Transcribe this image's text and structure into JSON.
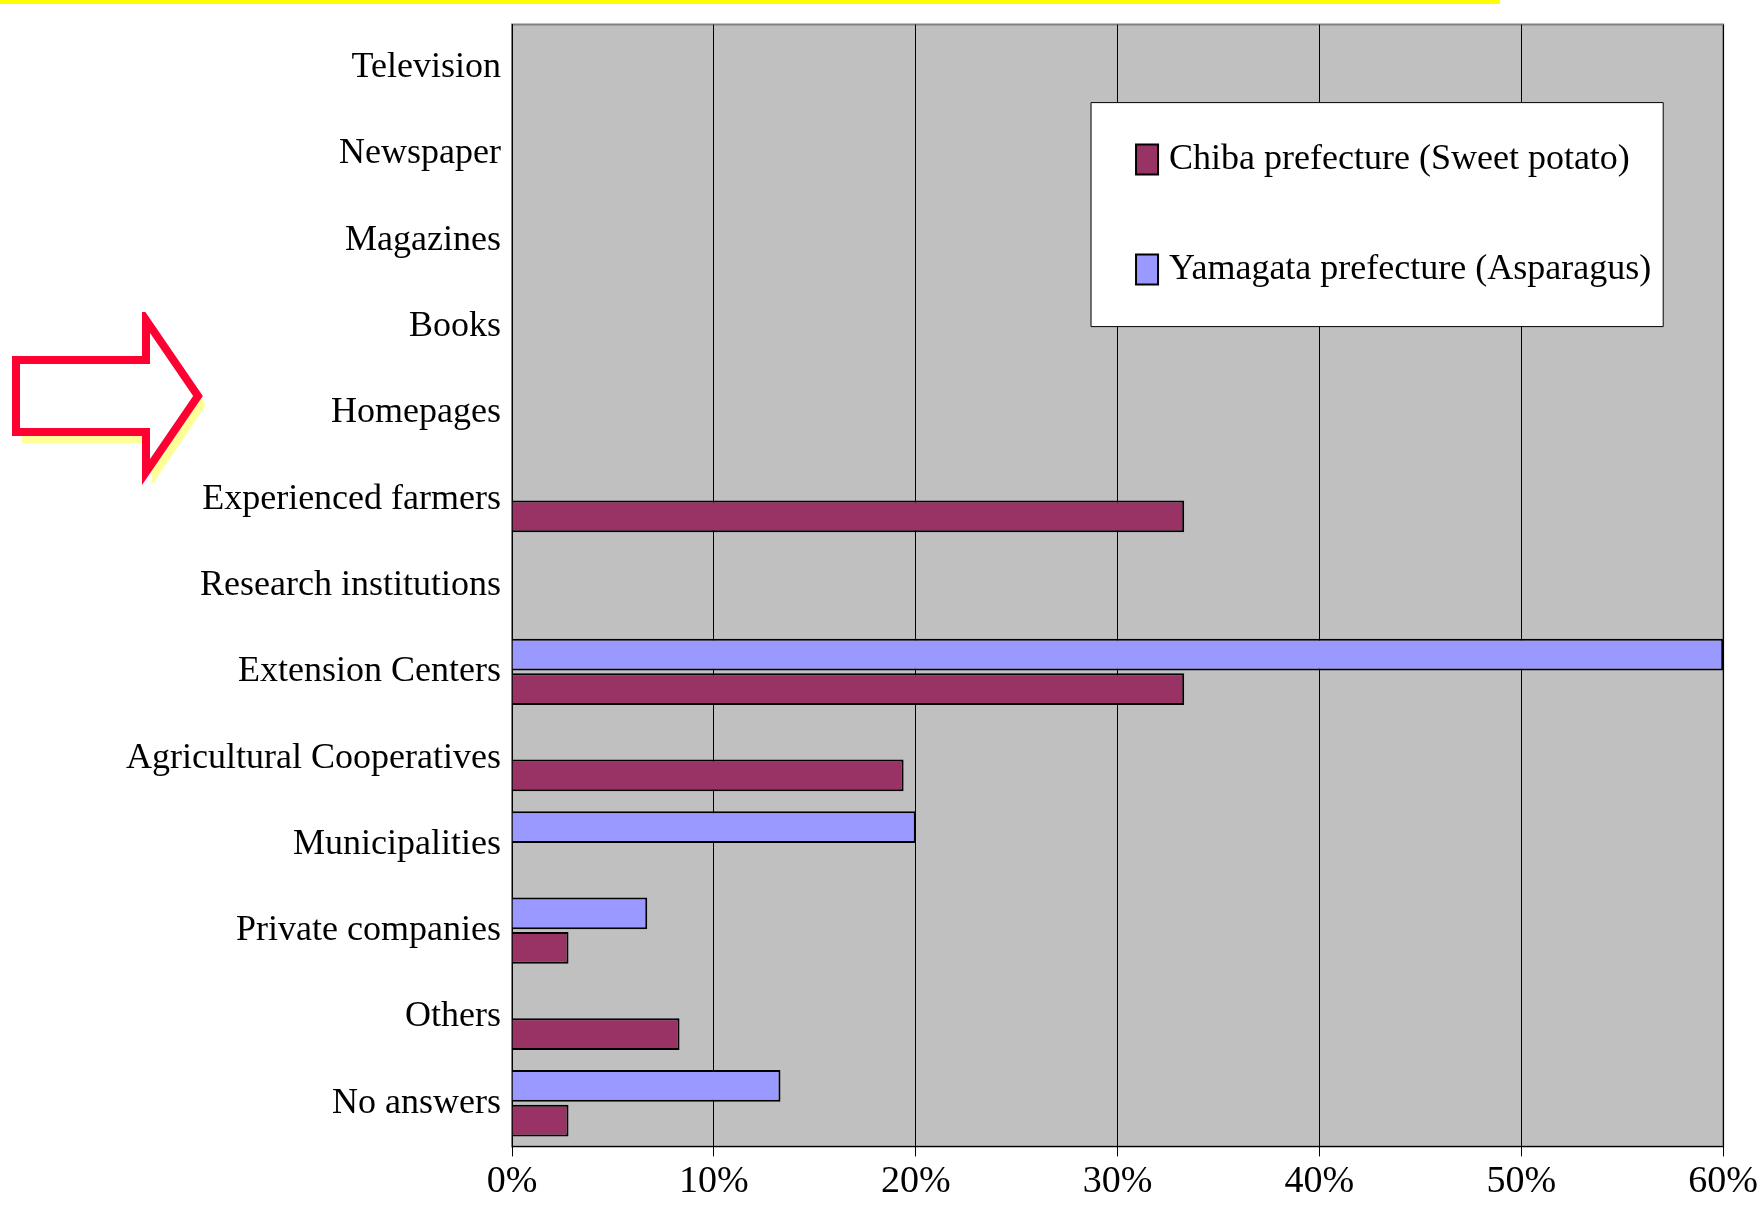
{
  "chart_data": {
    "type": "bar",
    "orientation": "horizontal",
    "categories": [
      "Television",
      "Newspaper",
      "Magazines",
      "Books",
      "Homepages",
      "Experienced farmers",
      "Research institutions",
      "Extension Centers",
      "Agricultural Cooperatives",
      "Municipalities",
      "Private companies",
      "Others",
      "No answers"
    ],
    "series": [
      {
        "name": "Chiba prefecture (Sweet potato)",
        "color": "#993366",
        "values": [
          0,
          0,
          0,
          0,
          0,
          33.3,
          0,
          33.3,
          19.4,
          0,
          2.8,
          8.3,
          2.8
        ]
      },
      {
        "name": "Yamagata prefecture (Asparagus)",
        "color": "#9999ff",
        "values": [
          0,
          0,
          0,
          0,
          0,
          0,
          0,
          60,
          0,
          20,
          6.7,
          0,
          13.3
        ]
      }
    ],
    "xlim": [
      0,
      60
    ],
    "xticks": [
      {
        "value": 0,
        "label": "0%"
      },
      {
        "value": 10,
        "label": "10%"
      },
      {
        "value": 20,
        "label": "20%"
      },
      {
        "value": 30,
        "label": "30%"
      },
      {
        "value": 40,
        "label": "40%"
      },
      {
        "value": 50,
        "label": "50%"
      },
      {
        "value": 60,
        "label": "60%"
      }
    ],
    "grid": "x",
    "legend": "top right"
  }
}
